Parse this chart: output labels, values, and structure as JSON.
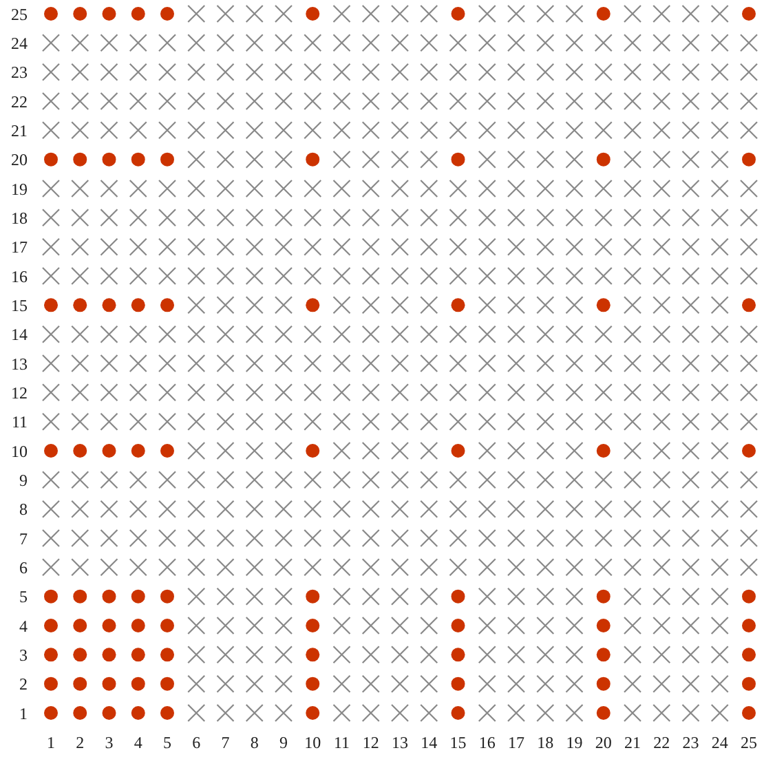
{
  "chart_data": {
    "type": "scatter",
    "xlim": [
      1,
      25
    ],
    "ylim": [
      1,
      25
    ],
    "xticks": [
      1,
      2,
      3,
      4,
      5,
      6,
      7,
      8,
      9,
      10,
      11,
      12,
      13,
      14,
      15,
      16,
      17,
      18,
      19,
      20,
      21,
      22,
      23,
      24,
      25
    ],
    "yticks": [
      1,
      2,
      3,
      4,
      5,
      6,
      7,
      8,
      9,
      10,
      11,
      12,
      13,
      14,
      15,
      16,
      17,
      18,
      19,
      20,
      21,
      22,
      23,
      24,
      25
    ],
    "series": [
      {
        "color": "#888888",
        "marker": "cross",
        "x": [
          6,
          7,
          8,
          9,
          11,
          12,
          13,
          14,
          16,
          17,
          18,
          19,
          21,
          22,
          23,
          24
        ],
        "values": [
          1,
          1,
          1,
          1,
          1,
          1,
          1,
          1,
          1,
          1,
          1,
          1,
          1,
          1,
          1,
          1
        ]
      },
      {
        "color": "#888888",
        "marker": "cross",
        "x": [
          6,
          7,
          8,
          9,
          11,
          12,
          13,
          14,
          16,
          17,
          18,
          19,
          21,
          22,
          23,
          24
        ],
        "values": [
          2,
          2,
          2,
          2,
          2,
          2,
          2,
          2,
          2,
          2,
          2,
          2,
          2,
          2,
          2,
          2
        ]
      },
      {
        "color": "#888888",
        "marker": "cross",
        "x": [
          6,
          7,
          8,
          9,
          11,
          12,
          13,
          14,
          16,
          17,
          18,
          19,
          21,
          22,
          23,
          24
        ],
        "values": [
          3,
          3,
          3,
          3,
          3,
          3,
          3,
          3,
          3,
          3,
          3,
          3,
          3,
          3,
          3,
          3
        ]
      },
      {
        "color": "#888888",
        "marker": "cross",
        "x": [
          6,
          7,
          8,
          9,
          11,
          12,
          13,
          14,
          16,
          17,
          18,
          19,
          21,
          22,
          23,
          24
        ],
        "values": [
          4,
          4,
          4,
          4,
          4,
          4,
          4,
          4,
          4,
          4,
          4,
          4,
          4,
          4,
          4,
          4
        ]
      },
      {
        "color": "#888888",
        "marker": "cross",
        "x": [
          6,
          7,
          8,
          9,
          11,
          12,
          13,
          14,
          16,
          17,
          18,
          19,
          21,
          22,
          23,
          24
        ],
        "values": [
          5,
          5,
          5,
          5,
          5,
          5,
          5,
          5,
          5,
          5,
          5,
          5,
          5,
          5,
          5,
          5
        ]
      },
      {
        "color": "#888888",
        "marker": "cross",
        "x": [
          1,
          2,
          3,
          4,
          5,
          6,
          7,
          8,
          9,
          10,
          11,
          12,
          13,
          14,
          15,
          16,
          17,
          18,
          19,
          20,
          21,
          22,
          23,
          24,
          25
        ],
        "values": [
          6,
          6,
          6,
          6,
          6,
          6,
          6,
          6,
          6,
          6,
          6,
          6,
          6,
          6,
          6,
          6,
          6,
          6,
          6,
          6,
          6,
          6,
          6,
          6,
          6
        ]
      },
      {
        "color": "#888888",
        "marker": "cross",
        "x": [
          1,
          2,
          3,
          4,
          5,
          6,
          7,
          8,
          9,
          10,
          11,
          12,
          13,
          14,
          15,
          16,
          17,
          18,
          19,
          20,
          21,
          22,
          23,
          24,
          25
        ],
        "values": [
          7,
          7,
          7,
          7,
          7,
          7,
          7,
          7,
          7,
          7,
          7,
          7,
          7,
          7,
          7,
          7,
          7,
          7,
          7,
          7,
          7,
          7,
          7,
          7,
          7
        ]
      },
      {
        "color": "#888888",
        "marker": "cross",
        "x": [
          1,
          2,
          3,
          4,
          5,
          6,
          7,
          8,
          9,
          10,
          11,
          12,
          13,
          14,
          15,
          16,
          17,
          18,
          19,
          20,
          21,
          22,
          23,
          24,
          25
        ],
        "values": [
          8,
          8,
          8,
          8,
          8,
          8,
          8,
          8,
          8,
          8,
          8,
          8,
          8,
          8,
          8,
          8,
          8,
          8,
          8,
          8,
          8,
          8,
          8,
          8,
          8
        ]
      },
      {
        "color": "#888888",
        "marker": "cross",
        "x": [
          1,
          2,
          3,
          4,
          5,
          6,
          7,
          8,
          9,
          10,
          11,
          12,
          13,
          14,
          15,
          16,
          17,
          18,
          19,
          20,
          21,
          22,
          23,
          24,
          25
        ],
        "values": [
          9,
          9,
          9,
          9,
          9,
          9,
          9,
          9,
          9,
          9,
          9,
          9,
          9,
          9,
          9,
          9,
          9,
          9,
          9,
          9,
          9,
          9,
          9,
          9,
          9
        ]
      },
      {
        "color": "#888888",
        "marker": "cross",
        "x": [
          6,
          7,
          8,
          9,
          11,
          12,
          13,
          14,
          16,
          17,
          18,
          19,
          21,
          22,
          23,
          24
        ],
        "values": [
          10,
          10,
          10,
          10,
          10,
          10,
          10,
          10,
          10,
          10,
          10,
          10,
          10,
          10,
          10,
          10
        ]
      },
      {
        "color": "#888888",
        "marker": "cross",
        "x": [
          1,
          2,
          3,
          4,
          5,
          6,
          7,
          8,
          9,
          10,
          11,
          12,
          13,
          14,
          15,
          16,
          17,
          18,
          19,
          20,
          21,
          22,
          23,
          24,
          25
        ],
        "values": [
          11,
          11,
          11,
          11,
          11,
          11,
          11,
          11,
          11,
          11,
          11,
          11,
          11,
          11,
          11,
          11,
          11,
          11,
          11,
          11,
          11,
          11,
          11,
          11,
          11
        ]
      },
      {
        "color": "#888888",
        "marker": "cross",
        "x": [
          1,
          2,
          3,
          4,
          5,
          6,
          7,
          8,
          9,
          10,
          11,
          12,
          13,
          14,
          15,
          16,
          17,
          18,
          19,
          20,
          21,
          22,
          23,
          24,
          25
        ],
        "values": [
          12,
          12,
          12,
          12,
          12,
          12,
          12,
          12,
          12,
          12,
          12,
          12,
          12,
          12,
          12,
          12,
          12,
          12,
          12,
          12,
          12,
          12,
          12,
          12,
          12
        ]
      },
      {
        "color": "#888888",
        "marker": "cross",
        "x": [
          1,
          2,
          3,
          4,
          5,
          6,
          7,
          8,
          9,
          10,
          11,
          12,
          13,
          14,
          15,
          16,
          17,
          18,
          19,
          20,
          21,
          22,
          23,
          24,
          25
        ],
        "values": [
          13,
          13,
          13,
          13,
          13,
          13,
          13,
          13,
          13,
          13,
          13,
          13,
          13,
          13,
          13,
          13,
          13,
          13,
          13,
          13,
          13,
          13,
          13,
          13,
          13
        ]
      },
      {
        "color": "#888888",
        "marker": "cross",
        "x": [
          1,
          2,
          3,
          4,
          5,
          6,
          7,
          8,
          9,
          10,
          11,
          12,
          13,
          14,
          15,
          16,
          17,
          18,
          19,
          20,
          21,
          22,
          23,
          24,
          25
        ],
        "values": [
          14,
          14,
          14,
          14,
          14,
          14,
          14,
          14,
          14,
          14,
          14,
          14,
          14,
          14,
          14,
          14,
          14,
          14,
          14,
          14,
          14,
          14,
          14,
          14,
          14
        ]
      },
      {
        "color": "#888888",
        "marker": "cross",
        "x": [
          6,
          7,
          8,
          9,
          11,
          12,
          13,
          14,
          16,
          17,
          18,
          19,
          21,
          22,
          23,
          24
        ],
        "values": [
          15,
          15,
          15,
          15,
          15,
          15,
          15,
          15,
          15,
          15,
          15,
          15,
          15,
          15,
          15,
          15
        ]
      },
      {
        "color": "#888888",
        "marker": "cross",
        "x": [
          1,
          2,
          3,
          4,
          5,
          6,
          7,
          8,
          9,
          10,
          11,
          12,
          13,
          14,
          15,
          16,
          17,
          18,
          19,
          20,
          21,
          22,
          23,
          24,
          25
        ],
        "values": [
          16,
          16,
          16,
          16,
          16,
          16,
          16,
          16,
          16,
          16,
          16,
          16,
          16,
          16,
          16,
          16,
          16,
          16,
          16,
          16,
          16,
          16,
          16,
          16,
          16
        ]
      },
      {
        "color": "#888888",
        "marker": "cross",
        "x": [
          1,
          2,
          3,
          4,
          5,
          6,
          7,
          8,
          9,
          10,
          11,
          12,
          13,
          14,
          15,
          16,
          17,
          18,
          19,
          20,
          21,
          22,
          23,
          24,
          25
        ],
        "values": [
          17,
          17,
          17,
          17,
          17,
          17,
          17,
          17,
          17,
          17,
          17,
          17,
          17,
          17,
          17,
          17,
          17,
          17,
          17,
          17,
          17,
          17,
          17,
          17,
          17
        ]
      },
      {
        "color": "#888888",
        "marker": "cross",
        "x": [
          1,
          2,
          3,
          4,
          5,
          6,
          7,
          8,
          9,
          10,
          11,
          12,
          13,
          14,
          15,
          16,
          17,
          18,
          19,
          20,
          21,
          22,
          23,
          24,
          25
        ],
        "values": [
          18,
          18,
          18,
          18,
          18,
          18,
          18,
          18,
          18,
          18,
          18,
          18,
          18,
          18,
          18,
          18,
          18,
          18,
          18,
          18,
          18,
          18,
          18,
          18,
          18
        ]
      },
      {
        "color": "#888888",
        "marker": "cross",
        "x": [
          1,
          2,
          3,
          4,
          5,
          6,
          7,
          8,
          9,
          10,
          11,
          12,
          13,
          14,
          15,
          16,
          17,
          18,
          19,
          20,
          21,
          22,
          23,
          24,
          25
        ],
        "values": [
          19,
          19,
          19,
          19,
          19,
          19,
          19,
          19,
          19,
          19,
          19,
          19,
          19,
          19,
          19,
          19,
          19,
          19,
          19,
          19,
          19,
          19,
          19,
          19,
          19
        ]
      },
      {
        "color": "#888888",
        "marker": "cross",
        "x": [
          6,
          7,
          8,
          9,
          11,
          12,
          13,
          14,
          16,
          17,
          18,
          19,
          21,
          22,
          23,
          24
        ],
        "values": [
          20,
          20,
          20,
          20,
          20,
          20,
          20,
          20,
          20,
          20,
          20,
          20,
          20,
          20,
          20,
          20
        ]
      },
      {
        "color": "#888888",
        "marker": "cross",
        "x": [
          1,
          2,
          3,
          4,
          5,
          6,
          7,
          8,
          9,
          10,
          11,
          12,
          13,
          14,
          15,
          16,
          17,
          18,
          19,
          20,
          21,
          22,
          23,
          24,
          25
        ],
        "values": [
          21,
          21,
          21,
          21,
          21,
          21,
          21,
          21,
          21,
          21,
          21,
          21,
          21,
          21,
          21,
          21,
          21,
          21,
          21,
          21,
          21,
          21,
          21,
          21,
          21
        ]
      },
      {
        "color": "#888888",
        "marker": "cross",
        "x": [
          1,
          2,
          3,
          4,
          5,
          6,
          7,
          8,
          9,
          10,
          11,
          12,
          13,
          14,
          15,
          16,
          17,
          18,
          19,
          20,
          21,
          22,
          23,
          24,
          25
        ],
        "values": [
          22,
          22,
          22,
          22,
          22,
          22,
          22,
          22,
          22,
          22,
          22,
          22,
          22,
          22,
          22,
          22,
          22,
          22,
          22,
          22,
          22,
          22,
          22,
          22,
          22
        ]
      },
      {
        "color": "#888888",
        "marker": "cross",
        "x": [
          1,
          2,
          3,
          4,
          5,
          6,
          7,
          8,
          9,
          10,
          11,
          12,
          13,
          14,
          15,
          16,
          17,
          18,
          19,
          20,
          21,
          22,
          23,
          24,
          25
        ],
        "values": [
          23,
          23,
          23,
          23,
          23,
          23,
          23,
          23,
          23,
          23,
          23,
          23,
          23,
          23,
          23,
          23,
          23,
          23,
          23,
          23,
          23,
          23,
          23,
          23,
          23
        ]
      },
      {
        "color": "#888888",
        "marker": "cross",
        "x": [
          1,
          2,
          3,
          4,
          5,
          6,
          7,
          8,
          9,
          10,
          11,
          12,
          13,
          14,
          15,
          16,
          17,
          18,
          19,
          20,
          21,
          22,
          23,
          24,
          25
        ],
        "values": [
          24,
          24,
          24,
          24,
          24,
          24,
          24,
          24,
          24,
          24,
          24,
          24,
          24,
          24,
          24,
          24,
          24,
          24,
          24,
          24,
          24,
          24,
          24,
          24,
          24
        ]
      },
      {
        "color": "#888888",
        "marker": "cross",
        "x": [
          6,
          7,
          8,
          9,
          11,
          12,
          13,
          14,
          16,
          17,
          18,
          19,
          21,
          22,
          23,
          24
        ],
        "values": [
          25,
          25,
          25,
          25,
          25,
          25,
          25,
          25,
          25,
          25,
          25,
          25,
          25,
          25,
          25,
          25
        ]
      },
      {
        "color": "#cc3300",
        "marker": "circle",
        "x": [
          1,
          2,
          3,
          4,
          5,
          10,
          15,
          20,
          25
        ],
        "values": [
          1,
          1,
          1,
          1,
          1,
          1,
          1,
          1,
          1
        ]
      },
      {
        "color": "#cc3300",
        "marker": "circle",
        "x": [
          1,
          2,
          3,
          4,
          5,
          10,
          15,
          20,
          25
        ],
        "values": [
          2,
          2,
          2,
          2,
          2,
          2,
          2,
          2,
          2
        ]
      },
      {
        "color": "#cc3300",
        "marker": "circle",
        "x": [
          1,
          2,
          3,
          4,
          5,
          10,
          15,
          20,
          25
        ],
        "values": [
          3,
          3,
          3,
          3,
          3,
          3,
          3,
          3,
          3
        ]
      },
      {
        "color": "#cc3300",
        "marker": "circle",
        "x": [
          1,
          2,
          3,
          4,
          5,
          10,
          15,
          20,
          25
        ],
        "values": [
          4,
          4,
          4,
          4,
          4,
          4,
          4,
          4,
          4
        ]
      },
      {
        "color": "#cc3300",
        "marker": "circle",
        "x": [
          1,
          2,
          3,
          4,
          5,
          10,
          15,
          20,
          25
        ],
        "values": [
          5,
          5,
          5,
          5,
          5,
          5,
          5,
          5,
          5
        ]
      },
      {
        "color": "#cc3300",
        "marker": "circle",
        "x": [
          1,
          2,
          3,
          4,
          5,
          10,
          15,
          20,
          25
        ],
        "values": [
          10,
          10,
          10,
          10,
          10,
          10,
          10,
          10,
          10
        ]
      },
      {
        "color": "#cc3300",
        "marker": "circle",
        "x": [
          1,
          2,
          3,
          4,
          5,
          10,
          15,
          20,
          25
        ],
        "values": [
          15,
          15,
          15,
          15,
          15,
          15,
          15,
          15,
          15
        ]
      },
      {
        "color": "#cc3300",
        "marker": "circle",
        "x": [
          1,
          2,
          3,
          4,
          5,
          10,
          15,
          20,
          25
        ],
        "values": [
          20,
          20,
          20,
          20,
          20,
          20,
          20,
          20,
          20
        ]
      },
      {
        "color": "#cc3300",
        "marker": "circle",
        "x": [
          1,
          2,
          3,
          4,
          5,
          10,
          15,
          20,
          25
        ],
        "values": [
          25,
          25,
          25,
          25,
          25,
          25,
          25,
          25,
          25
        ]
      }
    ]
  }
}
